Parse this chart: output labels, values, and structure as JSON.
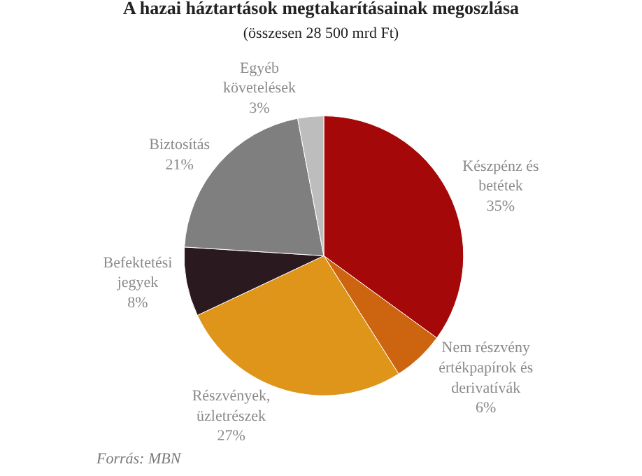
{
  "chart_data": {
    "type": "pie",
    "title": "A hazai háztartások megtakarításainak megoszlása",
    "subtitle": "(összesen 28 500 mrd Ft)",
    "categories": [
      "Készpénz és\nbetétek",
      "Nem részvény\nértékpapírok és\nderivatívák",
      "Részvények,\nüzletrészek",
      "Befektetési\njegyek",
      "Biztosítás",
      "Egyéb\nkövetelések"
    ],
    "values": [
      35,
      6,
      27,
      8,
      21,
      3
    ],
    "value_labels": [
      "35%",
      "6%",
      "27%",
      "8%",
      "21%",
      "3%"
    ],
    "colors": [
      "#a50808",
      "#cc6410",
      "#de951a",
      "#2a1a20",
      "#7f7f7f",
      "#bdbdbd"
    ],
    "legend": false,
    "annotations": [
      "Forrás: MBN"
    ]
  }
}
